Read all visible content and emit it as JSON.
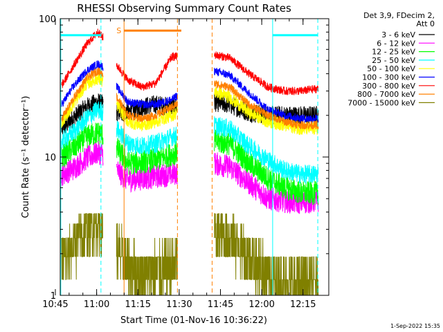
{
  "chart_data": {
    "type": "line",
    "title": "RHESSI Observing Summary Count Rates",
    "xlabel": "Start Time (01-Nov-16 10:36:22)",
    "ylabel": "Count Rate (s⁻¹ detector⁻¹)",
    "ylog": true,
    "ylim": [
      1,
      100
    ],
    "xlim_minutes": [
      10.4,
      108.0
    ],
    "x_ticks": [
      "10:45",
      "11:00",
      "11:15",
      "11:30",
      "11:45",
      "12:00",
      "12:15"
    ],
    "y_ticks": [
      "1",
      "10",
      "100"
    ],
    "info": [
      "Det 3,9, FDecim 2,",
      "Att 0"
    ],
    "footer": "1-Sep-2022 15:35",
    "legend_position": "top-right, outside plot",
    "gaps_minutes": [
      [
        26.0,
        30.8
      ],
      [
        53.0,
        66.4
      ]
    ],
    "markers": {
      "saa_label": "S",
      "saa_bar_minutes": [
        33.6,
        54.4
      ],
      "saa_bar_value": 82,
      "saa_solid_line_minutes": 33.6,
      "saa_dashed_line_minutes": [
        53.0,
        65.6
      ],
      "night_bars": [
        [
          10.6,
          25.2
        ],
        [
          87.6,
          104.0
        ]
      ],
      "night_bar_value": 76,
      "night_solid_lines_minutes": [
        10.6,
        87.6
      ],
      "night_dashed_lines_minutes": [
        25.2,
        104.0
      ]
    },
    "series": [
      {
        "name": "3 - 6 keV",
        "color": "#000000",
        "x": [
          11,
          15,
          20,
          24,
          26,
          31,
          35,
          40,
          45,
          51,
          66,
          72,
          79,
          86,
          92,
          98,
          103
        ],
        "y": [
          16,
          19,
          23,
          25,
          24,
          21,
          21,
          23,
          24,
          23,
          25,
          24,
          21,
          20,
          20,
          20,
          20
        ]
      },
      {
        "name": "6 - 12 keV",
        "color": "#ff00ff",
        "x": [
          11,
          15,
          20,
          24,
          26,
          31,
          35,
          40,
          45,
          51,
          66,
          72,
          79,
          86,
          92,
          98,
          103
        ],
        "y": [
          7.5,
          8.2,
          9.8,
          10.8,
          10.5,
          8.0,
          6.8,
          7.0,
          7.2,
          7.5,
          9.0,
          8.5,
          6.5,
          5.0,
          4.8,
          4.7,
          4.8
        ]
      },
      {
        "name": "12 - 25 keV",
        "color": "#00ff00",
        "x": [
          11,
          15,
          20,
          24,
          26,
          31,
          35,
          40,
          45,
          51,
          66,
          72,
          79,
          86,
          92,
          98,
          103
        ],
        "y": [
          10,
          11.5,
          14,
          15,
          14.5,
          11.5,
          9.0,
          9.2,
          9.5,
          10.5,
          13,
          12.5,
          9.0,
          7.0,
          6.0,
          5.5,
          5.5
        ]
      },
      {
        "name": "25 - 50 keV",
        "color": "#00ffff",
        "x": [
          11,
          15,
          20,
          24,
          26,
          31,
          35,
          40,
          45,
          51,
          66,
          72,
          79,
          86,
          92,
          98,
          103
        ],
        "y": [
          13,
          15,
          19,
          22,
          21,
          16,
          12.5,
          12,
          12.5,
          14,
          17,
          16,
          12,
          9.5,
          8.0,
          7.5,
          7.5
        ]
      },
      {
        "name": "50 - 100 keV",
        "color": "#ffff00",
        "x": [
          11,
          15,
          20,
          24,
          26,
          31,
          35,
          40,
          45,
          51,
          66,
          72,
          79,
          86,
          92,
          98,
          103
        ],
        "y": [
          18,
          24,
          34,
          37,
          35,
          24,
          18,
          17,
          18,
          20,
          30,
          27,
          21,
          18,
          17,
          16,
          16
        ]
      },
      {
        "name": "100 - 300 keV",
        "color": "#0000ff",
        "x": [
          11,
          15,
          20,
          24,
          26,
          31,
          35,
          40,
          45,
          51,
          66,
          72,
          79,
          86,
          92,
          98,
          103
        ],
        "y": [
          24,
          32,
          42,
          47,
          45,
          32,
          25,
          24,
          24,
          26,
          42,
          39,
          29,
          22,
          20,
          19,
          19
        ]
      },
      {
        "name": "300 - 800 keV",
        "color": "#ff0000",
        "x": [
          11,
          15,
          20,
          24,
          26,
          31,
          35,
          40,
          45,
          51,
          66,
          72,
          79,
          86,
          92,
          98,
          103
        ],
        "y": [
          33,
          45,
          65,
          80,
          73,
          46,
          36,
          32,
          34,
          53,
          55,
          52,
          40,
          32,
          30,
          30,
          31
        ]
      },
      {
        "name": "800 - 7000 keV",
        "color": "#ff8000",
        "x": [
          11,
          15,
          20,
          24,
          26,
          31,
          35,
          40,
          45,
          51,
          66,
          72,
          79,
          86,
          92,
          98,
          103
        ],
        "y": [
          19,
          26,
          37,
          42,
          40,
          27,
          20,
          19,
          20,
          23,
          34,
          32,
          24,
          20,
          18,
          17,
          17
        ]
      },
      {
        "name": "7000 - 15000 keV",
        "color": "#808000",
        "x": [
          11,
          15,
          20,
          24,
          26,
          31,
          35,
          40,
          45,
          51,
          66,
          72,
          79,
          86,
          92,
          98,
          103
        ],
        "y": [
          1.7,
          2.2,
          3.0,
          3.3,
          3.0,
          2.2,
          1.6,
          1.4,
          1.5,
          1.6,
          2.8,
          2.6,
          1.9,
          1.4,
          1.2,
          1.2,
          1.2
        ]
      }
    ]
  }
}
